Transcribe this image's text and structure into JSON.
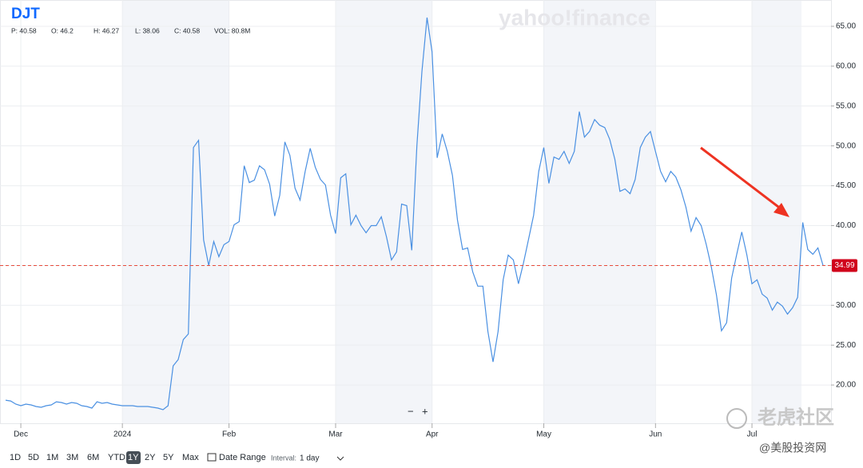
{
  "chart_data": {
    "type": "line",
    "ticker": "DJT",
    "stats": [
      "P: 40.58",
      "O: 46.2",
      "H: 46.27",
      "L: 38.06",
      "C: 40.58",
      "VOL: 80.8M"
    ],
    "categories": [
      null,
      null,
      null,
      "Dec",
      null,
      null,
      null,
      null,
      null,
      null,
      null,
      null,
      null,
      null,
      null,
      null,
      null,
      null,
      null,
      null,
      null,
      null,
      null,
      "2024",
      null,
      null,
      null,
      null,
      null,
      null,
      null,
      null,
      null,
      null,
      null,
      null,
      null,
      null,
      null,
      null,
      null,
      null,
      null,
      null,
      "Feb",
      null,
      null,
      null,
      null,
      null,
      null,
      null,
      null,
      null,
      null,
      null,
      null,
      null,
      null,
      null,
      null,
      null,
      null,
      null,
      null,
      "Mar",
      null,
      null,
      null,
      null,
      null,
      null,
      null,
      null,
      null,
      null,
      null,
      null,
      null,
      null,
      null,
      null,
      null,
      null,
      "Apr",
      null,
      null,
      null,
      null,
      null,
      null,
      null,
      null,
      null,
      null,
      null,
      null,
      null,
      null,
      null,
      null,
      null,
      null,
      null,
      null,
      null,
      "May",
      null,
      null,
      null,
      null,
      null,
      null,
      null,
      null,
      null,
      null,
      null,
      null,
      null,
      null,
      null,
      null,
      null,
      null,
      null,
      null,
      null,
      "Jun",
      null,
      null,
      null,
      null,
      null,
      null,
      null,
      null,
      null,
      null,
      null,
      null,
      null,
      null,
      null,
      null,
      null,
      null,
      "Jul",
      null,
      null,
      null,
      null,
      null,
      null,
      null,
      null,
      null,
      null,
      null,
      null,
      null,
      null
    ],
    "series": [
      {
        "name": "DJT",
        "color": "#4a90e2",
        "values": [
          18.1,
          18.0,
          17.6,
          17.4,
          17.6,
          17.5,
          17.3,
          17.2,
          17.4,
          17.5,
          17.9,
          17.8,
          17.6,
          17.8,
          17.7,
          17.4,
          17.3,
          17.1,
          17.9,
          17.7,
          17.8,
          17.6,
          17.5,
          17.4,
          17.4,
          17.4,
          17.3,
          17.3,
          17.3,
          17.2,
          17.1,
          16.9,
          17.4,
          22.4,
          23.2,
          25.7,
          26.4,
          49.8,
          50.7,
          38.2,
          35,
          38,
          36.1,
          37.6,
          38,
          40.1,
          40.5,
          47.5,
          45.4,
          45.7,
          47.5,
          47,
          45.2,
          41.2,
          43.8,
          50.5,
          48.8,
          44.7,
          43.2,
          46.8,
          49.7,
          47.3,
          45.8,
          45.1,
          41.3,
          39,
          46,
          46.5,
          40.1,
          41.3,
          40,
          39.1,
          40,
          40,
          41.1,
          38.6,
          35.7,
          36.7,
          42.7,
          42.5,
          36.9,
          50,
          59.3,
          66.1,
          61.8,
          48.5,
          51.5,
          49.3,
          46.3,
          40.7,
          37,
          37.2,
          34.2,
          32.4,
          32.4,
          26.7,
          22.9,
          26.7,
          33.2,
          36.3,
          35.7,
          32.7,
          35.3,
          38.3,
          41.3,
          46.8,
          49.8,
          45.3,
          48.6,
          48.3,
          49.3,
          47.8,
          49.3,
          54.3,
          51.1,
          51.8,
          53.3,
          52.6,
          52.3,
          50.8,
          48.3,
          44.3,
          44.6,
          44,
          45.8,
          49.8,
          51.1,
          51.8,
          49.3,
          46.8,
          45.5,
          46.8,
          46.1,
          44.5,
          42.3,
          39.3,
          41,
          40,
          37.6,
          34.8,
          31.3,
          26.8,
          27.8,
          33.4,
          36.4,
          39.2,
          36.3,
          32.7,
          33.2,
          31.4,
          30.9,
          29.4,
          30.4,
          29.9,
          28.9,
          29.7,
          31,
          40.4,
          37,
          36.4,
          37.2,
          35
        ]
      }
    ],
    "last_value": 34.99,
    "ylim": [
      15.2,
      67.8
    ],
    "yticks": [
      {
        "value": 20,
        "label": "20.00"
      },
      {
        "value": 25,
        "label": "25.00"
      },
      {
        "value": 30,
        "label": "30.00"
      },
      {
        "value": 35,
        "label": "35.00"
      },
      {
        "value": 40,
        "label": "40.00"
      },
      {
        "value": 45,
        "label": "45.00"
      },
      {
        "value": 50,
        "label": "50.00"
      },
      {
        "value": 55,
        "label": "55.00"
      },
      {
        "value": 60,
        "label": "60.00"
      },
      {
        "value": 65,
        "label": "65.00"
      }
    ],
    "grid": true,
    "zoom": [
      "−",
      "+"
    ],
    "ranges": [
      "1D",
      "5D",
      "1M",
      "3M",
      "6M",
      "YTD",
      "1Y",
      "2Y",
      "5Y",
      "Max"
    ],
    "selected_range": "1Y",
    "date_range": "Date Range",
    "interval_label": "Interval:",
    "interval": "1 day",
    "watermark": "yahoo!finance",
    "community": "老虎社区",
    "site": "@美股投资网"
  }
}
